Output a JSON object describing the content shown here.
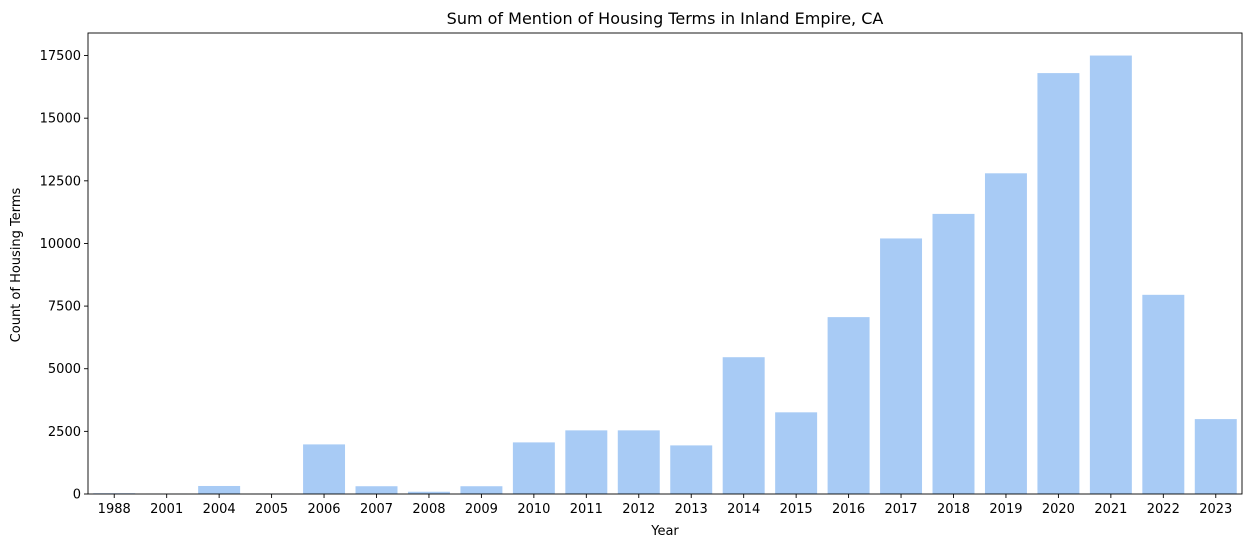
{
  "chart_data": {
    "type": "bar",
    "title": "Sum of Mention of Housing Terms in Inland Empire, CA",
    "xlabel": "Year",
    "ylabel": "Count of Housing Terms",
    "categories": [
      "1988",
      "2001",
      "2004",
      "2005",
      "2006",
      "2007",
      "2008",
      "2009",
      "2010",
      "2011",
      "2012",
      "2013",
      "2014",
      "2015",
      "2016",
      "2017",
      "2018",
      "2019",
      "2020",
      "2021",
      "2022",
      "2023"
    ],
    "values": [
      30,
      10,
      320,
      15,
      1980,
      310,
      90,
      310,
      2060,
      2540,
      2540,
      1940,
      5460,
      3260,
      7060,
      10200,
      11180,
      12800,
      16800,
      17500,
      7950,
      2990
    ],
    "ylim": [
      0,
      18400
    ],
    "yticks": [
      0,
      2500,
      5000,
      7500,
      10000,
      12500,
      15000,
      17500
    ],
    "ytick_labels": [
      "0",
      "2500",
      "5000",
      "7500",
      "10000",
      "12500",
      "15000",
      "17500"
    ],
    "grid": false,
    "bar_color": "#a8cbf5"
  }
}
